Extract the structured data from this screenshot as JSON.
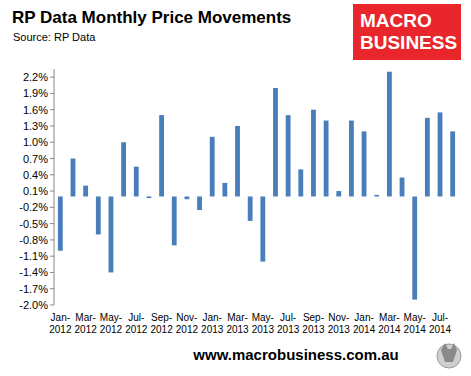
{
  "chart_data": {
    "type": "bar",
    "title": "RP Data Monthly Price Movements",
    "subtitle": "Source: RP Data",
    "logo": [
      "MACRO",
      "BUSINESS"
    ],
    "footer": "www.macrobusiness.com.au",
    "categories": [
      "Jan-2012",
      null,
      "Mar-2012",
      null,
      "May-2012",
      null,
      "Jul-2012",
      null,
      "Sep-2012",
      null,
      "Nov-2012",
      null,
      "Jan-2013",
      null,
      "Mar-2013",
      null,
      "May-2013",
      null,
      "Jul-2013",
      null,
      "Sep-2013",
      null,
      "Nov-2013",
      null,
      "Jan-2014",
      null,
      "Mar-2014",
      null,
      "May-2014",
      null,
      "Jul-2014",
      null
    ],
    "values": [
      -1.0,
      0.7,
      0.2,
      -0.7,
      -1.4,
      1.0,
      0.55,
      -0.03,
      1.5,
      -0.9,
      -0.05,
      -0.25,
      1.1,
      0.25,
      1.3,
      -0.45,
      -1.2,
      2.0,
      1.5,
      0.5,
      1.6,
      1.4,
      0.1,
      1.4,
      1.2,
      0.03,
      2.3,
      0.35,
      -1.9,
      1.45,
      1.55,
      1.2
    ],
    "color": "#4a7ebb",
    "ylim": [
      -2.0,
      2.35
    ],
    "yticks": [
      {
        "value": 2.2,
        "label": "2.2%"
      },
      {
        "value": 1.9,
        "label": "1.9%"
      },
      {
        "value": 1.6,
        "label": "1.6%"
      },
      {
        "value": 1.3,
        "label": "1.3%"
      },
      {
        "value": 1.0,
        "label": "1.0%"
      },
      {
        "value": 0.7,
        "label": "0.7%"
      },
      {
        "value": 0.4,
        "label": "0.4%"
      },
      {
        "value": 0.1,
        "label": "0.1%"
      },
      {
        "value": -0.2,
        "label": "-0.2%"
      },
      {
        "value": -0.5,
        "label": "-0.5%"
      },
      {
        "value": -0.8,
        "label": "-0.8%"
      },
      {
        "value": -1.1,
        "label": "-1.1%"
      },
      {
        "value": -1.4,
        "label": "-1.4%"
      },
      {
        "value": -1.7,
        "label": "-1.7%"
      },
      {
        "value": -2.0,
        "label": "-2.0%"
      }
    ],
    "grid": false
  }
}
